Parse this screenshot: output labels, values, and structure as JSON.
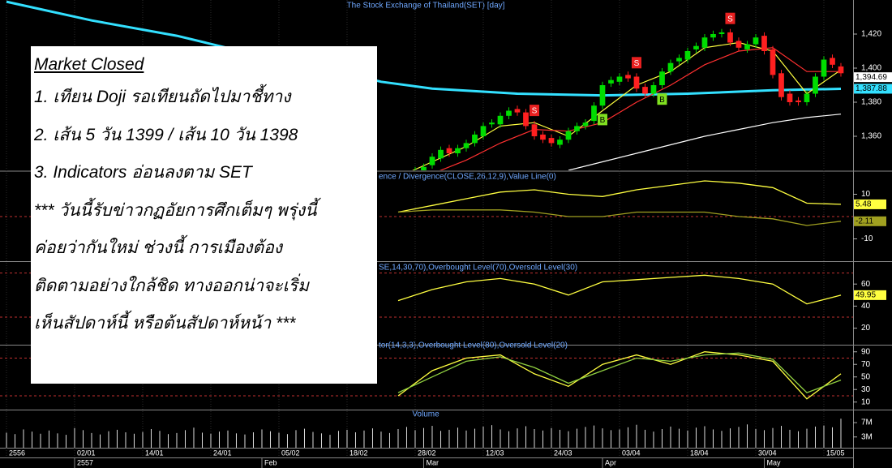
{
  "chart_data": {
    "type": "candlestick",
    "title": "The Stock Exchange of Thailand(SET) [day]",
    "xlim": [
      -0.76,
      99.43
    ],
    "xticks": [
      {
        "value": 0,
        "label": "2556"
      },
      {
        "value": 8,
        "label": "02/01"
      },
      {
        "value": 16,
        "label": "14/01"
      },
      {
        "value": 24,
        "label": "24/01"
      },
      {
        "value": 32,
        "label": "05/02"
      },
      {
        "value": 40,
        "label": "18/02"
      },
      {
        "value": 48,
        "label": "28/02"
      },
      {
        "value": 56,
        "label": "12/03"
      },
      {
        "value": 64,
        "label": "24/03"
      },
      {
        "value": 72,
        "label": "03/04"
      },
      {
        "value": 80,
        "label": "18/04"
      },
      {
        "value": 88,
        "label": "30/04"
      },
      {
        "value": 96,
        "label": "15/05"
      }
    ],
    "month_ticks": [
      {
        "value": 8,
        "label": "2557"
      },
      {
        "value": 30,
        "label": "Feb"
      },
      {
        "value": 49,
        "label": "Mar"
      },
      {
        "value": 70,
        "label": "Apr"
      },
      {
        "value": 89,
        "label": "May"
      }
    ],
    "price": {
      "ylim": [
        1340,
        1440
      ],
      "yticks": [
        {
          "value": 1420,
          "label": "1,420"
        },
        {
          "value": 1400,
          "label": "1,400"
        },
        {
          "value": 1380,
          "label": "1,380"
        },
        {
          "value": 1360,
          "label": "1,360"
        }
      ],
      "up_color": "#00dd00",
      "down_color": "#ff2020",
      "x": [
        44,
        45,
        46,
        47,
        48,
        49,
        50,
        51,
        52,
        53,
        54,
        55,
        56,
        57,
        58,
        59,
        60,
        61,
        62,
        63,
        64,
        65,
        66,
        67,
        68,
        69,
        70,
        71,
        72,
        73,
        74,
        75,
        76,
        77,
        78,
        79,
        80,
        81,
        82,
        83,
        84,
        85,
        86,
        87,
        88,
        89,
        90,
        91,
        92,
        93,
        94,
        95,
        96,
        97,
        98
      ],
      "open": [
        1331,
        1334,
        1337,
        1333,
        1338,
        1340,
        1343,
        1347,
        1353,
        1350,
        1353,
        1356,
        1360,
        1367,
        1367,
        1372,
        1376,
        1374,
        1367,
        1361,
        1359,
        1355,
        1358,
        1363,
        1366,
        1369,
        1378,
        1391,
        1392,
        1396,
        1395,
        1389,
        1385,
        1390,
        1398,
        1404,
        1405,
        1411,
        1412,
        1418,
        1420,
        1421,
        1416,
        1411,
        1414,
        1419,
        1411,
        1397,
        1385,
        1381,
        1380,
        1385,
        1395,
        1406,
        1401
      ],
      "high": [
        1335,
        1338,
        1339,
        1340,
        1342,
        1344,
        1350,
        1354,
        1355,
        1355,
        1358,
        1363,
        1368,
        1370,
        1374,
        1377,
        1378,
        1376,
        1369,
        1363,
        1361,
        1360,
        1365,
        1368,
        1370,
        1380,
        1392,
        1395,
        1397,
        1398,
        1397,
        1391,
        1392,
        1400,
        1405,
        1408,
        1412,
        1415,
        1420,
        1422,
        1423,
        1423,
        1418,
        1416,
        1420,
        1421,
        1413,
        1399,
        1387,
        1383,
        1387,
        1397,
        1407,
        1408,
        1403
      ],
      "low": [
        1329,
        1332,
        1330,
        1331,
        1336,
        1338,
        1341,
        1345,
        1348,
        1348,
        1351,
        1354,
        1358,
        1365,
        1365,
        1370,
        1372,
        1364,
        1358,
        1356,
        1354,
        1353,
        1356,
        1361,
        1364,
        1367,
        1376,
        1389,
        1390,
        1392,
        1386,
        1383,
        1383,
        1388,
        1396,
        1402,
        1403,
        1409,
        1410,
        1416,
        1418,
        1413,
        1410,
        1409,
        1412,
        1408,
        1394,
        1381,
        1378,
        1378,
        1378,
        1383,
        1393,
        1400,
        1395
      ],
      "close": [
        1333,
        1336,
        1332,
        1338,
        1340,
        1342,
        1348,
        1352,
        1350,
        1353,
        1356,
        1361,
        1366,
        1368,
        1372,
        1375,
        1374,
        1366,
        1360,
        1358,
        1356,
        1358,
        1363,
        1366,
        1368,
        1378,
        1390,
        1393,
        1395,
        1394,
        1388,
        1385,
        1390,
        1398,
        1403,
        1406,
        1410,
        1413,
        1418,
        1420,
        1421,
        1415,
        1412,
        1414,
        1418,
        1410,
        1396,
        1383,
        1380,
        1380,
        1385,
        1395,
        1405,
        1402,
        1397
      ],
      "lines": [
        {
          "color": "#33e0ff",
          "x": [
            0,
            10,
            20,
            30,
            40,
            44,
            50,
            60,
            70,
            80,
            90,
            98
          ],
          "values": [
            1439,
            1428,
            1419,
            1407,
            1397,
            1392,
            1388,
            1385,
            1384,
            1385,
            1387,
            1387.88
          ]
        },
        {
          "color": "#ffff40",
          "x": [
            46,
            50,
            54,
            58,
            62,
            66,
            70,
            74,
            78,
            82,
            86,
            90,
            94,
            98
          ],
          "values": [
            1336,
            1345,
            1354,
            1366,
            1368,
            1360,
            1375,
            1390,
            1398,
            1412,
            1415,
            1410,
            1385,
            1399
          ]
        },
        {
          "color": "#ff3030",
          "x": [
            46,
            50,
            54,
            58,
            62,
            66,
            70,
            74,
            78,
            82,
            86,
            90,
            94,
            98
          ],
          "values": [
            1330,
            1338,
            1346,
            1356,
            1364,
            1363,
            1368,
            1380,
            1390,
            1402,
            1410,
            1412,
            1398,
            1398
          ]
        },
        {
          "color": "#ffffff",
          "x": [
            66,
            70,
            74,
            78,
            82,
            86,
            90,
            94,
            98
          ],
          "values": [
            1340,
            1345,
            1350,
            1355,
            1360,
            1364,
            1368,
            1371,
            1373
          ]
        }
      ],
      "badges": [
        {
          "value": 1394.69,
          "label": "1,394.69",
          "color": "#ffffff"
        },
        {
          "value": 1387.88,
          "label": "1,387.88",
          "color": "#33e0ff"
        }
      ],
      "signals": [
        {
          "x": 62,
          "label": "S"
        },
        {
          "x": 74,
          "label": "S"
        },
        {
          "x": 85,
          "label": "S"
        },
        {
          "x": 70,
          "label": "B"
        },
        {
          "x": 77,
          "label": "B"
        }
      ]
    },
    "macd": {
      "title": "ence / Divergence(CLOSE,26,12,9),Value Line(0)",
      "ylim": [
        -20,
        20
      ],
      "yticks": [
        10,
        -10
      ],
      "levels": [
        0
      ],
      "x": [
        46,
        50,
        54,
        58,
        62,
        66,
        70,
        74,
        78,
        82,
        86,
        90,
        94,
        98
      ],
      "series": [
        {
          "color": "#ffff40",
          "values": [
            2,
            5,
            8,
            11,
            12,
            10,
            9,
            12,
            14,
            16,
            15,
            13,
            6,
            5.48
          ]
        },
        {
          "color": "#a0a020",
          "values": [
            2,
            3,
            3,
            3,
            2,
            0,
            0,
            2,
            2,
            2,
            0,
            -1,
            -4,
            -2.11
          ]
        }
      ],
      "badges": [
        {
          "value": 5.48,
          "color": "#ffff40"
        },
        {
          "value": -2.11,
          "color": "#a0a020"
        }
      ]
    },
    "rsi": {
      "title": "SE,14,30,70),Overbought Level(70),Oversold Level(30)",
      "ylim": [
        5,
        80
      ],
      "yticks": [
        60,
        40,
        20
      ],
      "levels": [
        70,
        30
      ],
      "x": [
        46,
        50,
        54,
        58,
        62,
        66,
        70,
        74,
        78,
        82,
        86,
        90,
        94,
        98
      ],
      "series": [
        {
          "color": "#ffff40",
          "values": [
            45,
            55,
            62,
            65,
            60,
            50,
            62,
            64,
            66,
            68,
            65,
            60,
            42,
            49.95
          ]
        }
      ],
      "badges": [
        {
          "value": 49.95,
          "color": "#ffff40"
        }
      ]
    },
    "stoch": {
      "title": "tor(14,3,3),Overbought Level(80),Oversold Level(20)",
      "ylim": [
        -2,
        100
      ],
      "yticks": [
        90,
        70,
        50,
        30,
        10
      ],
      "levels": [
        80,
        20
      ],
      "x": [
        46,
        50,
        54,
        58,
        62,
        66,
        70,
        74,
        78,
        82,
        86,
        90,
        94,
        98
      ],
      "series": [
        {
          "color": "#ffff40",
          "values": [
            20,
            60,
            80,
            85,
            55,
            35,
            70,
            85,
            70,
            90,
            85,
            75,
            15,
            55
          ]
        },
        {
          "color": "#90d040",
          "values": [
            25,
            50,
            75,
            82,
            65,
            40,
            60,
            80,
            75,
            85,
            88,
            78,
            25,
            45
          ]
        }
      ]
    },
    "volume": {
      "title": "Volume",
      "ylim": [
        0,
        9.5
      ],
      "yticks": [
        {
          "value": 7,
          "label": "7M"
        },
        {
          "value": 3,
          "label": "3M"
        }
      ],
      "color": "#dddddd",
      "values": [
        4.2,
        3.8,
        5.1,
        4.5,
        3.9,
        4.8,
        4.0,
        3.6,
        5.5,
        4.9,
        4.1,
        3.7,
        4.6,
        5.0,
        4.3,
        3.9,
        4.4,
        5.2,
        4.7,
        3.8,
        4.1,
        4.9,
        5.6,
        4.2,
        3.9,
        4.5,
        4.8,
        4.0,
        3.7,
        4.3,
        5.1,
        4.6,
        4.2,
        3.8,
        4.9,
        5.3,
        4.4,
        4.0,
        3.6,
        4.7,
        5.0,
        4.3,
        4.8,
        5.4,
        4.5,
        4.1,
        5.2,
        5.8,
        4.9,
        5.5,
        6.1,
        4.7,
        5.0,
        5.6,
        4.8,
        5.3,
        5.9,
        6.3,
        5.1,
        4.6,
        5.4,
        6.0,
        5.2,
        4.8,
        5.5,
        5.0,
        4.6,
        5.3,
        5.8,
        6.2,
        5.4,
        4.9,
        5.1,
        5.7,
        6.4,
        5.0,
        4.5,
        5.2,
        5.9,
        5.3,
        4.8,
        5.6,
        6.0,
        5.1,
        4.7,
        5.4,
        5.8,
        6.5,
        5.2,
        4.9,
        5.5,
        6.1,
        5.0,
        4.6,
        5.3,
        5.9,
        6.2,
        5.7,
        8.1
      ]
    },
    "note": {
      "heading": "Market Closed",
      "lines": [
        "1. เทียน Doji รอเทียนถัดไปมาชี้ทาง",
        "2. เส้น 5 วัน 1399 / เส้น 10 วัน 1398",
        "3. Indicators อ่อนลงตาม SET",
        "*** วันนี้รับข่าวกฏอัยการศึกเต็มๆ พรุ่งนี้",
        "ค่อยว่ากันใหม่ ช่วงนี้ การเมืองต้อง",
        "ติดตามอย่างใกล้ชิด ทางออกน่าจะเริ่ม",
        "เห็นสัปดาห์นี้ หรือต้นสัปดาห์หน้า ***"
      ]
    }
  }
}
